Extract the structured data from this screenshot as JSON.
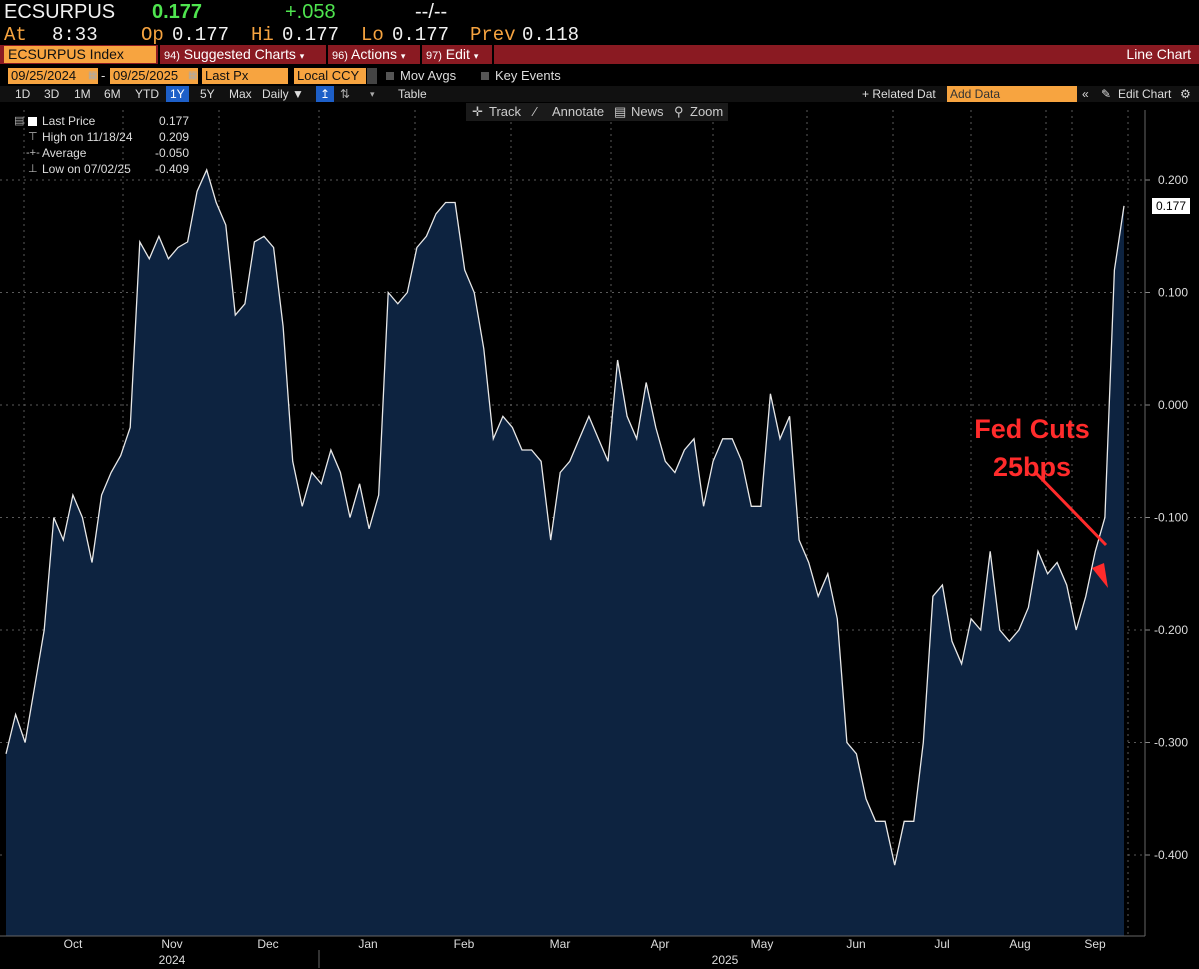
{
  "header": {
    "ticker": "ECSURPUS",
    "last": "0.177",
    "change": "+.058",
    "time_placeholder": "--/--",
    "at_label": "At",
    "at_time": "8:33",
    "op_label": "Op",
    "op_value": "0.177",
    "hi_label": "Hi",
    "hi_value": "0.177",
    "lo_label": "Lo",
    "lo_value": "0.177",
    "prev_label": "Prev",
    "prev_value": "0.118"
  },
  "menubar": {
    "security": "ECSURPUS Index",
    "suggested_num": "94)",
    "suggested": "Suggested Charts",
    "actions_num": "96)",
    "actions": "Actions",
    "edit_num": "97)",
    "edit": "Edit",
    "chart_type": "Line Chart"
  },
  "options": {
    "start_date": "09/25/2024",
    "end_date": "09/25/2025",
    "dash": "-",
    "field": "Last Px",
    "currency": "Local CCY",
    "mov_avgs": "Mov Avgs",
    "key_events": "Key Events"
  },
  "timeframes": {
    "items": [
      "1D",
      "3D",
      "1M",
      "6M",
      "YTD",
      "1Y",
      "5Y",
      "Max"
    ],
    "periodicity": "Daily ▼",
    "table": "Table",
    "related": "+ Related Dat",
    "add_data_placeholder": "Add Data",
    "edit_chart": "Edit Chart"
  },
  "toolbar": {
    "track": "Track",
    "annotate": "Annotate",
    "news": "News",
    "zoom": "Zoom"
  },
  "legend": {
    "last_label": "Last Price",
    "last_value": "0.177",
    "high_label": "High on 11/18/24",
    "high_value": "0.209",
    "avg_label": "Average",
    "avg_value": "-0.050",
    "low_label": "Low on 07/02/25",
    "low_value": "-0.409"
  },
  "annotation": {
    "line1": "Fed Cuts",
    "line2": "25bps"
  },
  "colors": {
    "area_fill": "#0d2340",
    "line": "#e8e8e8",
    "grid": "#5a5a5a",
    "annotation": "#ff2b2b",
    "amber": "#f7a440",
    "menubar": "#8a1a22"
  },
  "chart_data": {
    "type": "area",
    "x_tick_labels": [
      "Oct",
      "Nov",
      "Dec",
      "Jan",
      "Feb",
      "Mar",
      "Apr",
      "May",
      "Jun",
      "Jul",
      "Aug",
      "Sep"
    ],
    "year_labels": [
      "2024",
      "2025"
    ],
    "y_tick_labels": [
      "0.200",
      "0.100",
      "0.000",
      "-0.100",
      "-0.200",
      "-0.300",
      "-0.400"
    ],
    "ylim": [
      -0.47,
      0.26
    ],
    "last_value_tag": "0.177",
    "grid": true,
    "series": [
      {
        "x_start": "2024-09-25",
        "x_end": "2025-09-25",
        "values": [
          -0.31,
          -0.275,
          -0.3,
          -0.25,
          -0.2,
          -0.1,
          -0.12,
          -0.08,
          -0.1,
          -0.14,
          -0.08,
          -0.06,
          -0.045,
          -0.02,
          0.145,
          0.13,
          0.15,
          0.13,
          0.14,
          0.145,
          0.19,
          0.209,
          0.18,
          0.16,
          0.08,
          0.09,
          0.145,
          0.15,
          0.14,
          0.07,
          -0.05,
          -0.09,
          -0.06,
          -0.07,
          -0.04,
          -0.06,
          -0.1,
          -0.07,
          -0.11,
          -0.08,
          0.1,
          0.09,
          0.1,
          0.14,
          0.15,
          0.17,
          0.18,
          0.18,
          0.12,
          0.1,
          0.05,
          -0.03,
          -0.01,
          -0.02,
          -0.04,
          -0.04,
          -0.05,
          -0.12,
          -0.06,
          -0.05,
          -0.03,
          -0.01,
          -0.03,
          -0.05,
          0.04,
          -0.01,
          -0.03,
          0.02,
          -0.02,
          -0.05,
          -0.06,
          -0.04,
          -0.03,
          -0.09,
          -0.05,
          -0.03,
          -0.03,
          -0.05,
          -0.09,
          -0.09,
          0.01,
          -0.03,
          -0.01,
          -0.12,
          -0.14,
          -0.17,
          -0.15,
          -0.19,
          -0.3,
          -0.31,
          -0.35,
          -0.37,
          -0.37,
          -0.409,
          -0.37,
          -0.37,
          -0.3,
          -0.17,
          -0.16,
          -0.21,
          -0.23,
          -0.19,
          -0.2,
          -0.13,
          -0.2,
          -0.21,
          -0.2,
          -0.18,
          -0.13,
          -0.15,
          -0.14,
          -0.16,
          -0.2,
          -0.17,
          -0.13,
          -0.1,
          0.12,
          0.177
        ]
      }
    ]
  }
}
